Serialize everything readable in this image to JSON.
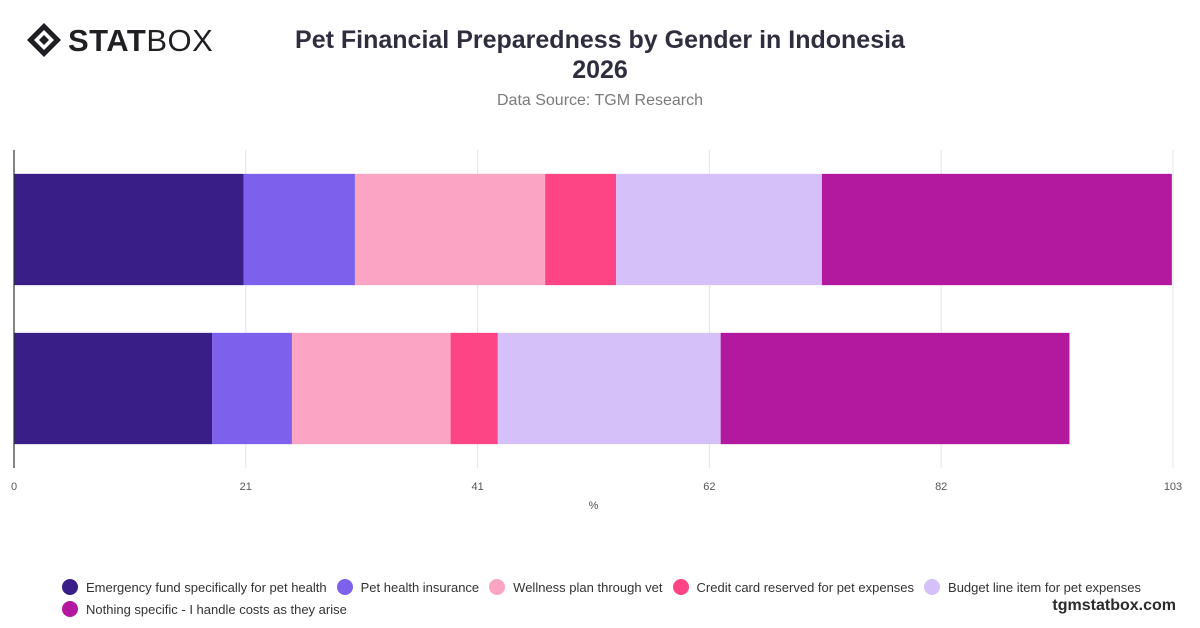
{
  "brand": {
    "logo_bold": "STAT",
    "logo_light": "BOX",
    "watermark": "tgmstatbox.com"
  },
  "header": {
    "title_line1": "Pet Financial Preparedness by Gender in Indonesia",
    "title_line2": "2026",
    "subtitle": "Data Source: TGM Research"
  },
  "chart_data": {
    "type": "bar",
    "orientation": "horizontal",
    "stacked": true,
    "title": "Pet Financial Preparedness by Gender in Indonesia 2026",
    "subtitle": "Data Source: TGM Research",
    "xlabel": "%",
    "ylabel": "",
    "xlim": [
      0,
      103
    ],
    "xticks": [
      "0",
      "21",
      "41",
      "62",
      "82",
      "103"
    ],
    "xtick_values": [
      0,
      20.6,
      41.2,
      61.8,
      82.4,
      103
    ],
    "grid": true,
    "legend_position": "bottom",
    "categories": [
      "",
      ""
    ],
    "series": [
      {
        "name": "Emergency fund specifically for pet health",
        "color": "#3a1e87",
        "values": [
          20.4,
          17.6
        ]
      },
      {
        "name": "Pet health insurance",
        "color": "#7d60eb",
        "values": [
          9.9,
          7.1
        ]
      },
      {
        "name": "Wellness plan through vet",
        "color": "#fca4c3",
        "values": [
          16.9,
          14.1
        ]
      },
      {
        "name": "Credit card reserved for pet expenses",
        "color": "#fd4585",
        "values": [
          6.3,
          4.2
        ]
      },
      {
        "name": "Budget line item for pet expenses",
        "color": "#d5c0fa",
        "values": [
          18.3,
          19.8
        ]
      },
      {
        "name": "Nothing specific - I handle costs as they arise",
        "color": "#b2199f",
        "values": [
          31.1,
          31.0
        ]
      }
    ]
  }
}
